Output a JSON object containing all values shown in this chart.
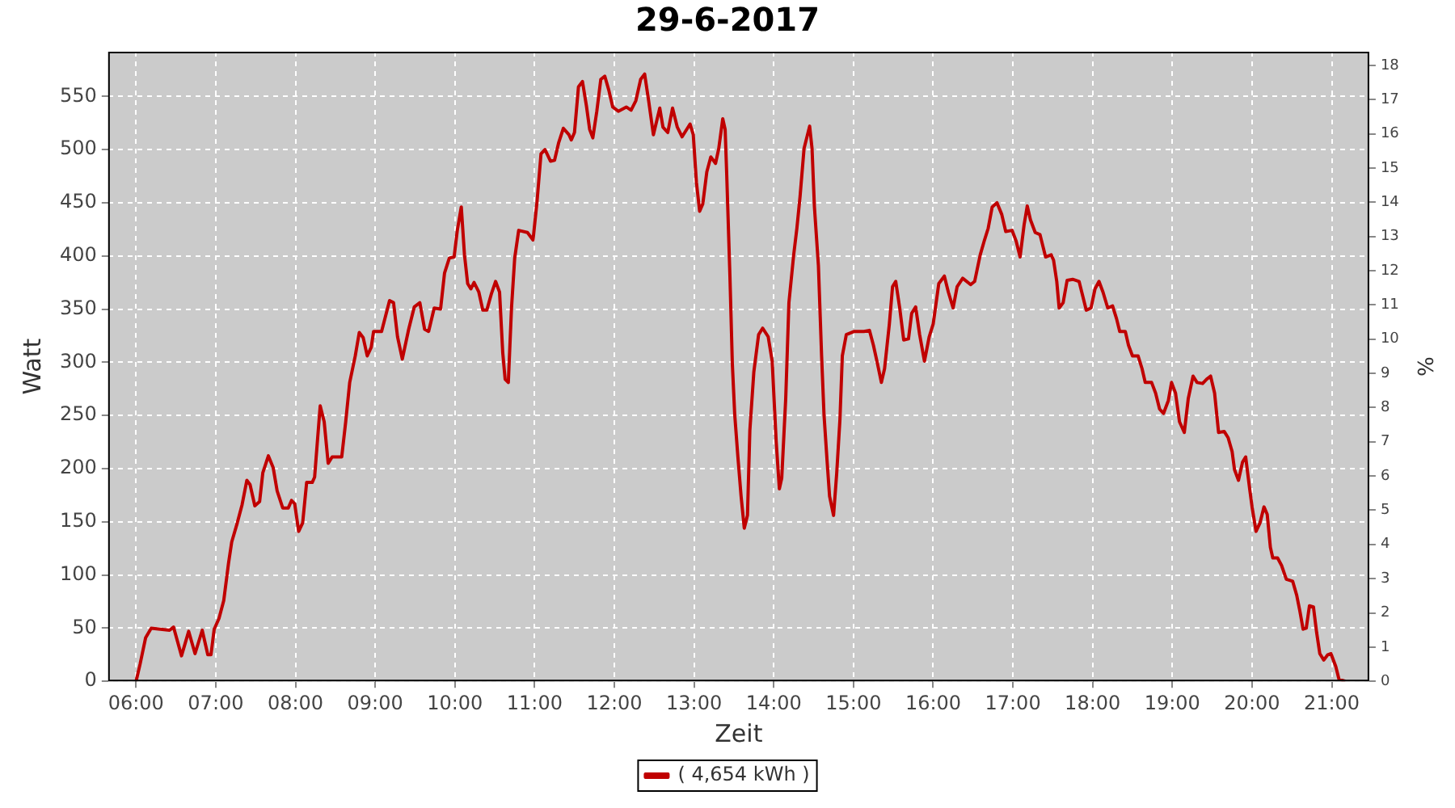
{
  "chart_data": {
    "type": "line",
    "title": "29-6-2017",
    "xlabel": "Zeit",
    "ylabel": "Watt",
    "y2label": "%",
    "x": [
      6.0,
      6.05,
      6.12,
      6.19,
      6.42,
      6.47,
      6.57,
      6.66,
      6.74,
      6.83,
      6.9,
      6.94,
      6.98,
      7.04,
      7.1,
      7.16,
      7.2,
      7.27,
      7.33,
      7.39,
      7.43,
      7.49,
      7.55,
      7.59,
      7.66,
      7.72,
      7.77,
      7.84,
      7.91,
      7.95,
      7.99,
      8.04,
      8.09,
      8.14,
      8.21,
      8.24,
      8.27,
      8.31,
      8.36,
      8.41,
      8.46,
      8.58,
      8.63,
      8.68,
      8.75,
      8.8,
      8.85,
      8.9,
      8.95,
      8.98,
      9.08,
      9.18,
      9.23,
      9.28,
      9.34,
      9.42,
      9.49,
      9.56,
      9.62,
      9.67,
      9.74,
      9.82,
      9.87,
      9.93,
      9.99,
      10.03,
      10.08,
      10.12,
      10.16,
      10.2,
      10.24,
      10.3,
      10.35,
      10.4,
      10.46,
      10.51,
      10.56,
      10.6,
      10.63,
      10.67,
      10.71,
      10.75,
      10.8,
      10.91,
      10.98,
      11.03,
      11.08,
      11.13,
      11.2,
      11.25,
      11.3,
      11.36,
      11.43,
      11.46,
      11.5,
      11.55,
      11.6,
      11.65,
      11.69,
      11.73,
      11.78,
      11.83,
      11.88,
      11.93,
      11.98,
      12.05,
      12.15,
      12.21,
      12.27,
      12.33,
      12.38,
      12.43,
      12.49,
      12.57,
      12.61,
      12.67,
      12.73,
      12.79,
      12.85,
      12.95,
      12.99,
      13.03,
      13.07,
      13.11,
      13.16,
      13.21,
      13.27,
      13.31,
      13.36,
      13.39,
      13.41,
      13.45,
      13.48,
      13.51,
      13.55,
      13.59,
      13.63,
      13.67,
      13.7,
      13.75,
      13.81,
      13.86,
      13.93,
      13.98,
      14.03,
      14.07,
      14.1,
      14.15,
      14.19,
      14.25,
      14.29,
      14.33,
      14.38,
      14.45,
      14.48,
      14.51,
      14.56,
      14.6,
      14.63,
      14.67,
      14.7,
      14.75,
      14.79,
      14.83,
      14.86,
      14.91,
      15.01,
      15.13,
      15.2,
      15.25,
      15.3,
      15.35,
      15.39,
      15.45,
      15.49,
      15.53,
      15.58,
      15.63,
      15.69,
      15.73,
      15.78,
      15.83,
      15.89,
      15.95,
      16.0,
      16.07,
      16.14,
      16.19,
      16.25,
      16.3,
      16.37,
      16.47,
      16.52,
      16.59,
      16.64,
      16.69,
      16.74,
      16.8,
      16.86,
      16.91,
      16.99,
      17.04,
      17.09,
      17.14,
      17.18,
      17.22,
      17.28,
      17.34,
      17.41,
      17.48,
      17.51,
      17.55,
      17.58,
      17.63,
      17.68,
      17.75,
      17.83,
      17.87,
      17.92,
      17.98,
      18.03,
      18.08,
      18.13,
      18.19,
      18.25,
      18.3,
      18.34,
      18.41,
      18.45,
      18.5,
      18.57,
      18.62,
      18.66,
      18.74,
      18.79,
      18.84,
      18.89,
      18.95,
      18.99,
      19.04,
      19.09,
      19.15,
      19.2,
      19.26,
      19.31,
      19.38,
      19.43,
      19.48,
      19.53,
      19.58,
      19.65,
      19.7,
      19.75,
      19.78,
      19.83,
      19.88,
      19.92,
      19.97,
      20.0,
      20.05,
      20.1,
      20.15,
      20.19,
      20.23,
      20.26,
      20.32,
      20.37,
      20.43,
      20.51,
      20.56,
      20.6,
      20.64,
      20.68,
      20.72,
      20.77,
      20.81,
      20.85,
      20.9,
      20.95,
      20.99,
      21.05,
      21.09,
      21.17
    ],
    "series": [
      {
        "name": "( 4,654 kWh )",
        "color": "#c00000",
        "values": [
          0,
          16,
          41,
          50,
          48,
          51,
          24,
          47,
          26,
          48,
          25,
          25,
          49,
          59,
          76,
          111,
          131,
          149,
          166,
          189,
          185,
          165,
          169,
          196,
          212,
          201,
          179,
          163,
          163,
          170,
          167,
          141,
          149,
          187,
          187,
          192,
          221,
          259,
          244,
          205,
          211,
          211,
          244,
          281,
          306,
          328,
          323,
          306,
          314,
          329,
          329,
          358,
          356,
          324,
          303,
          331,
          352,
          356,
          331,
          329,
          351,
          350,
          384,
          398,
          399,
          424,
          446,
          401,
          374,
          369,
          375,
          366,
          349,
          349,
          365,
          376,
          366,
          309,
          284,
          281,
          351,
          398,
          424,
          422,
          415,
          451,
          496,
          500,
          489,
          490,
          506,
          520,
          514,
          509,
          516,
          559,
          564,
          541,
          519,
          511,
          536,
          566,
          569,
          556,
          540,
          536,
          540,
          537,
          546,
          566,
          571,
          546,
          514,
          539,
          521,
          516,
          539,
          521,
          512,
          524,
          514,
          469,
          442,
          449,
          479,
          493,
          487,
          501,
          529,
          519,
          476,
          381,
          299,
          251,
          211,
          174,
          144,
          156,
          236,
          291,
          326,
          332,
          324,
          301,
          226,
          181,
          191,
          266,
          356,
          401,
          426,
          456,
          501,
          522,
          501,
          446,
          391,
          306,
          251,
          206,
          174,
          156,
          196,
          246,
          306,
          326,
          329,
          329,
          330,
          316,
          299,
          281,
          294,
          336,
          371,
          376,
          351,
          321,
          322,
          346,
          352,
          326,
          301,
          324,
          336,
          374,
          381,
          366,
          351,
          371,
          379,
          373,
          376,
          401,
          414,
          426,
          446,
          450,
          439,
          423,
          424,
          414,
          399,
          429,
          447,
          434,
          422,
          420,
          399,
          401,
          396,
          376,
          351,
          356,
          377,
          378,
          376,
          364,
          349,
          351,
          369,
          376,
          366,
          351,
          353,
          341,
          329,
          329,
          316,
          306,
          306,
          294,
          281,
          281,
          271,
          256,
          252,
          264,
          281,
          271,
          244,
          234,
          266,
          287,
          281,
          280,
          284,
          287,
          271,
          234,
          235,
          229,
          216,
          199,
          189,
          206,
          211,
          181,
          164,
          141,
          149,
          164,
          157,
          126,
          116,
          116,
          109,
          96,
          94,
          81,
          66,
          49,
          50,
          71,
          70,
          46,
          26,
          20,
          25,
          26,
          14,
          2,
          0
        ]
      }
    ],
    "xlim": [
      5.65,
      21.47
    ],
    "xticks": [
      {
        "value": 6,
        "label": "06:00"
      },
      {
        "value": 7,
        "label": "07:00"
      },
      {
        "value": 8,
        "label": "08:00"
      },
      {
        "value": 9,
        "label": "09:00"
      },
      {
        "value": 10,
        "label": "10:00"
      },
      {
        "value": 11,
        "label": "11:00"
      },
      {
        "value": 12,
        "label": "12:00"
      },
      {
        "value": 13,
        "label": "13:00"
      },
      {
        "value": 14,
        "label": "14:00"
      },
      {
        "value": 15,
        "label": "15:00"
      },
      {
        "value": 16,
        "label": "16:00"
      },
      {
        "value": 17,
        "label": "17:00"
      },
      {
        "value": 18,
        "label": "18:00"
      },
      {
        "value": 19,
        "label": "19:00"
      },
      {
        "value": 20,
        "label": "20:00"
      },
      {
        "value": 21,
        "label": "21:00"
      }
    ],
    "ylim": [
      0,
      592
    ],
    "yticks": [
      0,
      50,
      100,
      150,
      200,
      250,
      300,
      350,
      400,
      450,
      500,
      550
    ],
    "y2lim": [
      0,
      18.4
    ],
    "y2ticks": [
      0,
      1,
      2,
      3,
      4,
      5,
      6,
      7,
      8,
      9,
      10,
      11,
      12,
      13,
      14,
      15,
      16,
      17,
      18
    ],
    "grid": true,
    "legend": "bottom",
    "marker": "none",
    "line_style": "solid"
  }
}
